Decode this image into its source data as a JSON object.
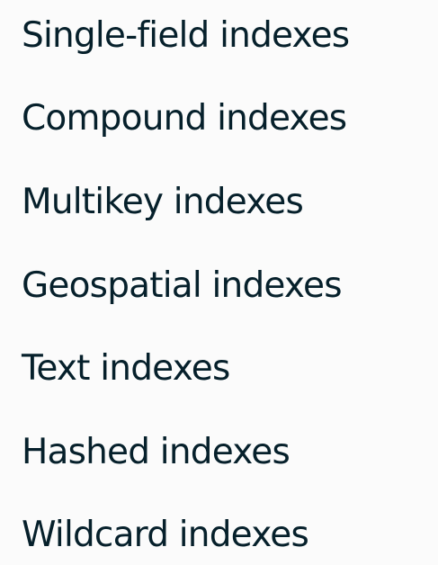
{
  "index_types": [
    {
      "label": "Single-field indexes"
    },
    {
      "label": "Compound indexes"
    },
    {
      "label": "Multikey indexes"
    },
    {
      "label": "Geospatial indexes"
    },
    {
      "label": "Text indexes"
    },
    {
      "label": "Hashed indexes"
    },
    {
      "label": "Wildcard indexes"
    }
  ],
  "colors": {
    "text": "#06202b",
    "background": "#fbfbfb"
  }
}
